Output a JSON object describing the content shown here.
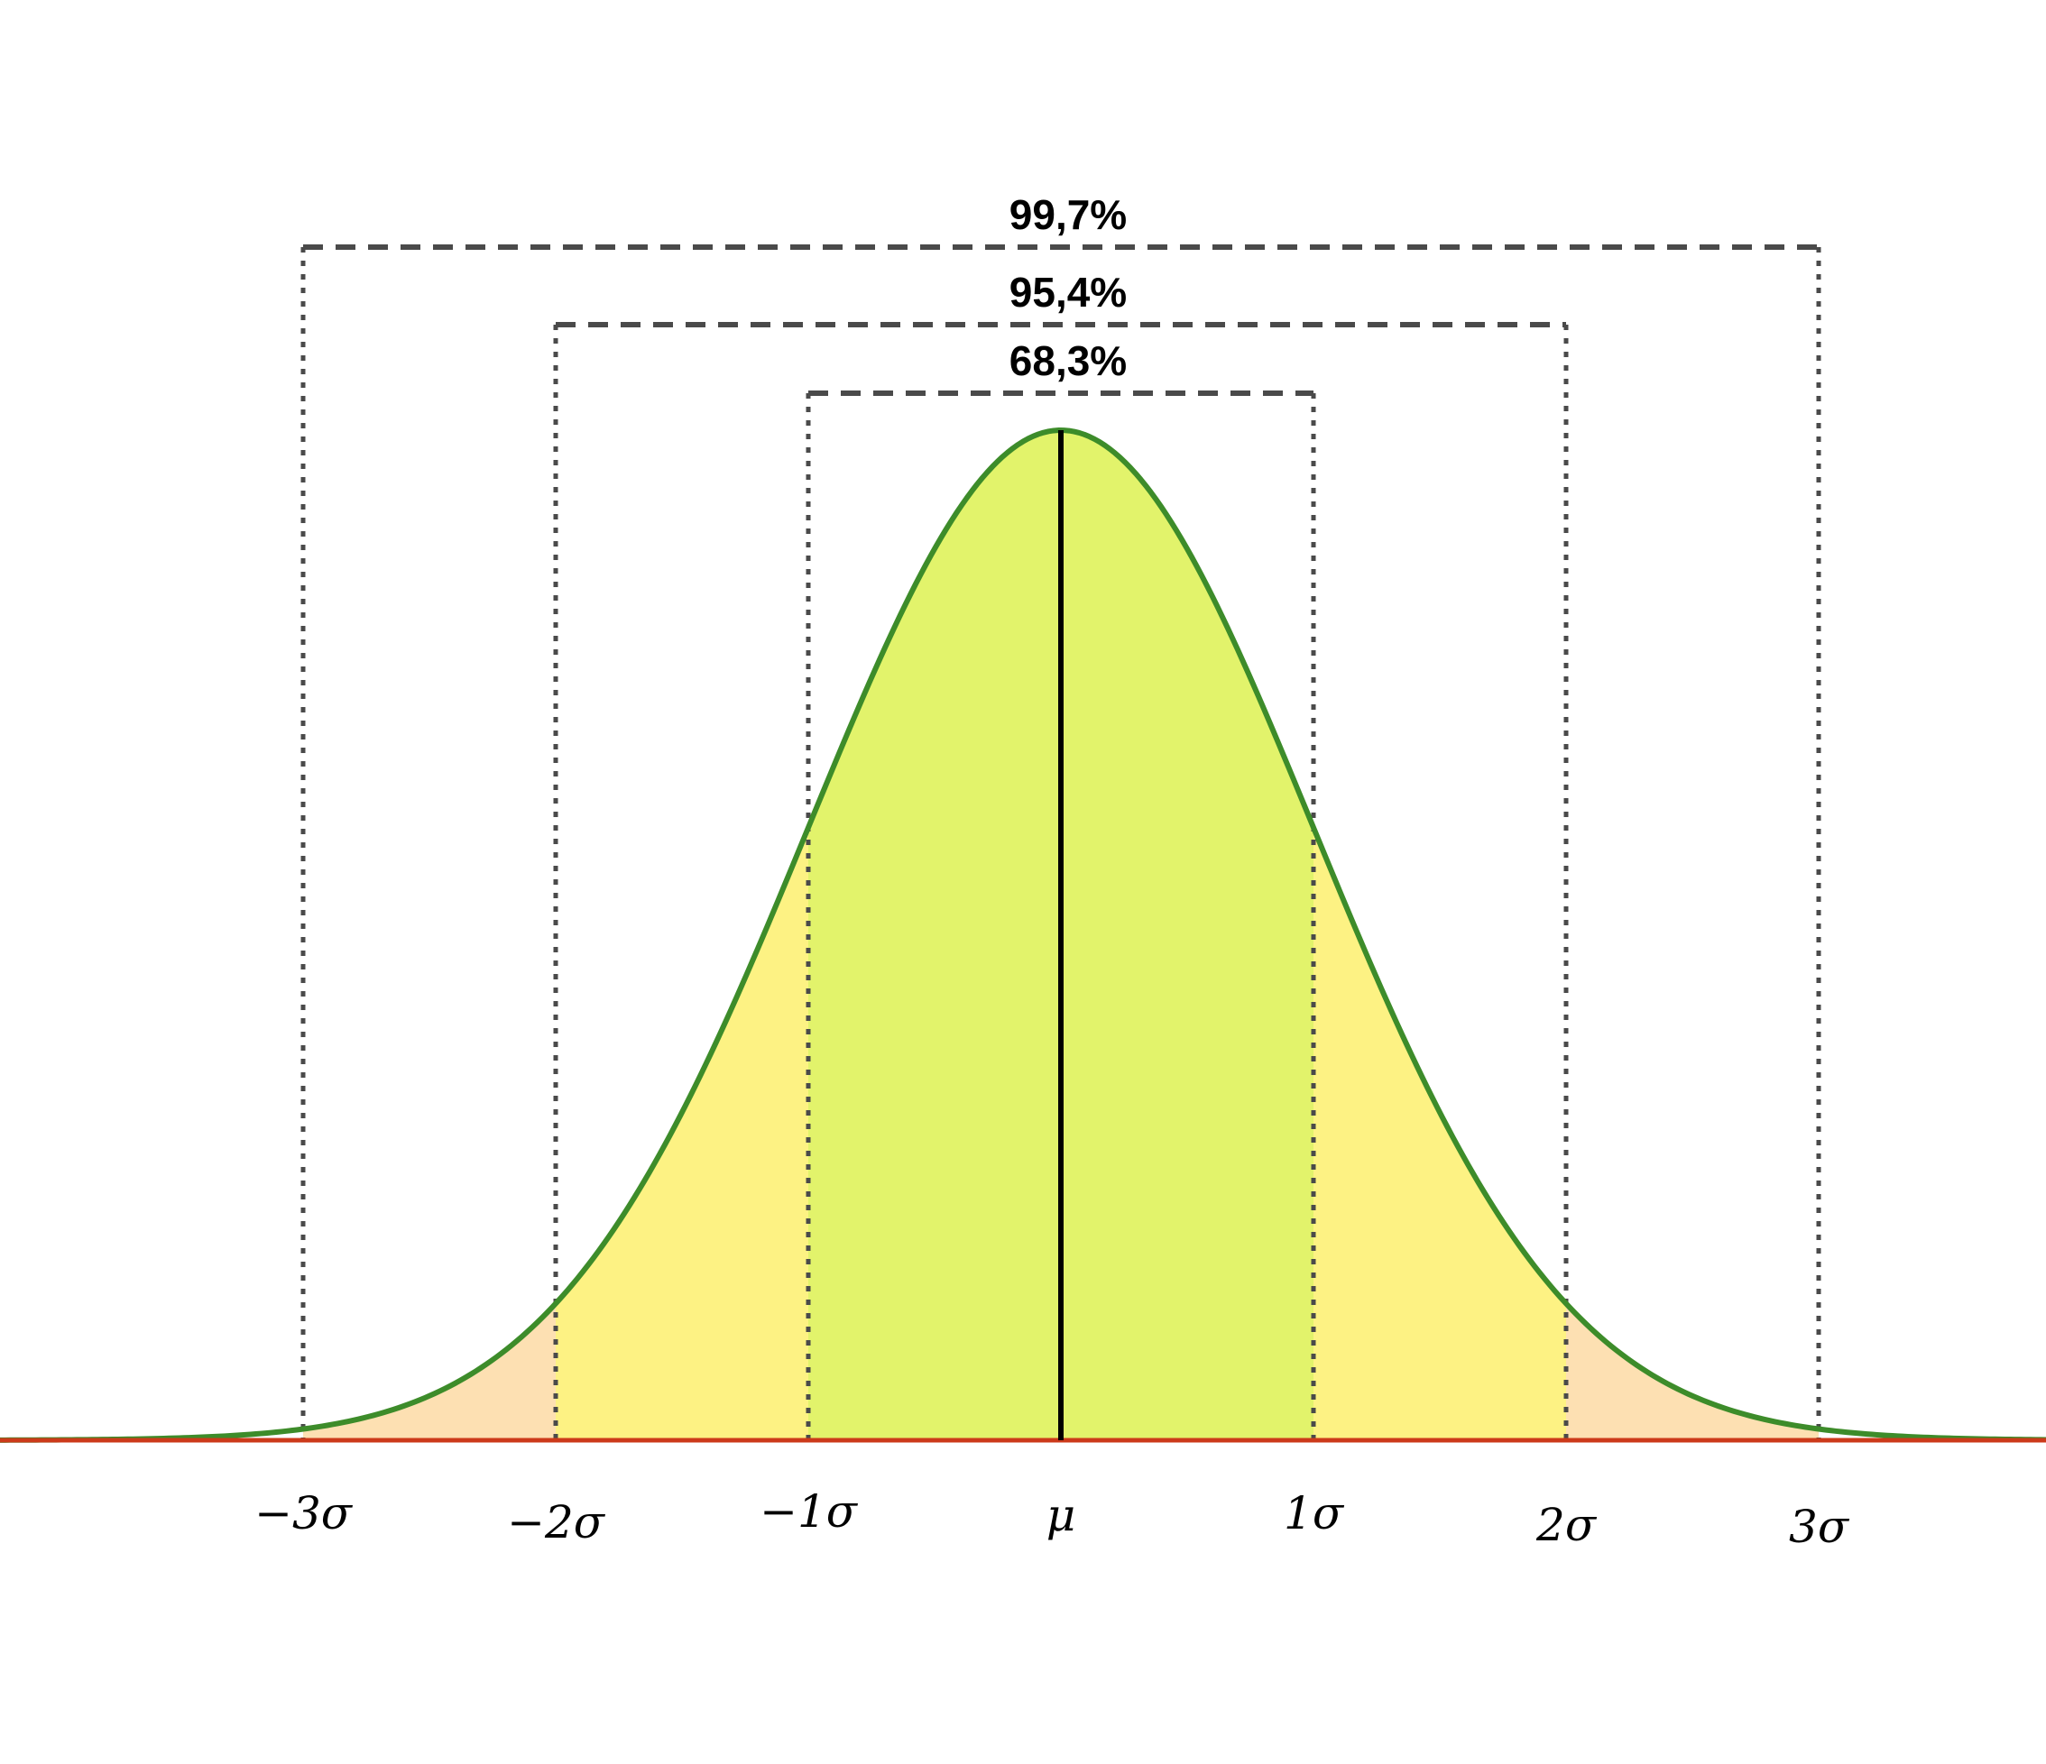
{
  "chart_data": {
    "type": "area",
    "distribution": "normal",
    "x_tick_labels": [
      "−3σ",
      "−2σ",
      "−1σ",
      "μ",
      "1σ",
      "2σ",
      "3σ"
    ],
    "x_tick_values": [
      -3,
      -2,
      -1,
      0,
      1,
      2,
      3
    ],
    "xlim": [
      -4.2,
      3.9
    ],
    "intervals": [
      {
        "label": "68,3%",
        "from": -1,
        "to": 1
      },
      {
        "label": "95,4%",
        "from": -2,
        "to": 2
      },
      {
        "label": "99,7%",
        "from": -3,
        "to": 3
      }
    ],
    "bands": [
      {
        "from": -1,
        "to": 1,
        "color": "#e2f36b"
      },
      {
        "from": -2,
        "to": -1,
        "color": "#fdf283"
      },
      {
        "from": 1,
        "to": 2,
        "color": "#fdf283"
      },
      {
        "from": -3,
        "to": -2,
        "color": "#fde0b2"
      },
      {
        "from": 2,
        "to": 3,
        "color": "#fde0b2"
      }
    ],
    "colors": {
      "curve": "#3d8c2a",
      "baseline": "#cc3a1a",
      "mean_line": "#000000",
      "interval_lines": "#4a4a4a"
    },
    "grid": false,
    "legend": "none"
  }
}
